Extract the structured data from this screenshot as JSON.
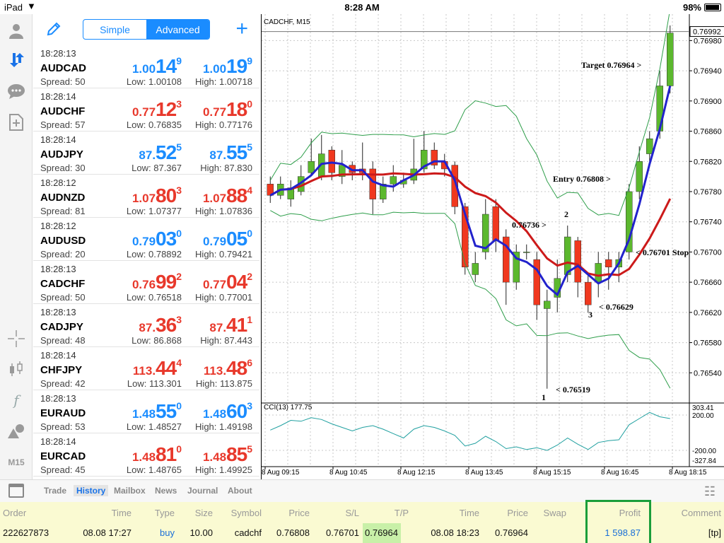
{
  "status": {
    "device": "iPad",
    "time": "8:28 AM",
    "battery": "98%"
  },
  "toolbar": {
    "simple_label": "Simple",
    "advanced_label": "Advanced"
  },
  "sidebar": {
    "timeframe": "M15"
  },
  "quotes": [
    {
      "time": "18:28:13",
      "symbol": "AUDCAD",
      "spread": "Spread: 50",
      "low": "Low: 1.00108",
      "high": "High: 1.00718",
      "bid": [
        "1.00",
        "14",
        "9"
      ],
      "ask": [
        "1.00",
        "19",
        "9"
      ],
      "color": "blue"
    },
    {
      "time": "18:28:14",
      "symbol": "AUDCHF",
      "spread": "Spread: 57",
      "low": "Low: 0.76835",
      "high": "High: 0.77176",
      "bid": [
        "0.77",
        "12",
        "3"
      ],
      "ask": [
        "0.77",
        "18",
        "0"
      ],
      "color": "red"
    },
    {
      "time": "18:28:14",
      "symbol": "AUDJPY",
      "spread": "Spread: 30",
      "low": "Low: 87.367",
      "high": "High: 87.830",
      "bid": [
        "87.",
        "52",
        "5"
      ],
      "ask": [
        "87.",
        "55",
        "5"
      ],
      "color": "blue"
    },
    {
      "time": "18:28:12",
      "symbol": "AUDNZD",
      "spread": "Spread: 81",
      "low": "Low: 1.07377",
      "high": "High: 1.07836",
      "bid": [
        "1.07",
        "80",
        "3"
      ],
      "ask": [
        "1.07",
        "88",
        "4"
      ],
      "color": "red"
    },
    {
      "time": "18:28:12",
      "symbol": "AUDUSD",
      "spread": "Spread: 20",
      "low": "Low: 0.78892",
      "high": "High: 0.79421",
      "bid": [
        "0.79",
        "03",
        "0"
      ],
      "ask": [
        "0.79",
        "05",
        "0"
      ],
      "color": "blue"
    },
    {
      "time": "18:28:13",
      "symbol": "CADCHF",
      "spread": "Spread: 50",
      "low": "Low: 0.76518",
      "high": "High: 0.77001",
      "bid": [
        "0.76",
        "99",
        "2"
      ],
      "ask": [
        "0.77",
        "04",
        "2"
      ],
      "color": "red"
    },
    {
      "time": "18:28:13",
      "symbol": "CADJPY",
      "spread": "Spread: 48",
      "low": "Low: 86.868",
      "high": "High: 87.443",
      "bid": [
        "87.",
        "36",
        "3"
      ],
      "ask": [
        "87.",
        "41",
        "1"
      ],
      "color": "red"
    },
    {
      "time": "18:28:14",
      "symbol": "CHFJPY",
      "spread": "Spread: 42",
      "low": "Low: 113.301",
      "high": "High: 113.875",
      "bid": [
        "113.",
        "44",
        "4"
      ],
      "ask": [
        "113.",
        "48",
        "6"
      ],
      "color": "red"
    },
    {
      "time": "18:28:13",
      "symbol": "EURAUD",
      "spread": "Spread: 53",
      "low": "Low: 1.48527",
      "high": "High: 1.49198",
      "bid": [
        "1.48",
        "55",
        "0"
      ],
      "ask": [
        "1.48",
        "60",
        "3"
      ],
      "color": "blue"
    },
    {
      "time": "18:28:14",
      "symbol": "EURCAD",
      "spread": "Spread: 45",
      "low": "Low: 1.48765",
      "high": "High: 1.49925",
      "bid": [
        "1.48",
        "81",
        "0"
      ],
      "ask": [
        "1.48",
        "85",
        "5"
      ],
      "color": "red"
    }
  ],
  "chart": {
    "title": "CADCHF, M15",
    "current_price": "0.76992",
    "price_labels": [
      "0.76980",
      "0.76940",
      "0.76900",
      "0.76860",
      "0.76820",
      "0.76780",
      "0.76740",
      "0.76700",
      "0.76660",
      "0.76620",
      "0.76580",
      "0.76540"
    ],
    "time_labels": [
      "8 Aug 09:15",
      "8 Aug 10:45",
      "8 Aug 12:15",
      "8 Aug 13:45",
      "8 Aug 15:15",
      "8 Aug 16:45",
      "8 Aug 18:15"
    ],
    "annotations": {
      "target": "Target 0.76964 >",
      "entry": "Entry 0.76808 >",
      "level": "0.76736 >",
      "stop": "< 0.76701 Stop",
      "low3": "< 0.76629",
      "low1": "< 0.76519",
      "n1": "1",
      "n2": "2",
      "n3": "3"
    },
    "cci": {
      "label": "CCI(13) 177.75",
      "levels": [
        "303.41",
        "200.00",
        "-200.00",
        "-327.84"
      ]
    }
  },
  "chart_data": {
    "type": "candlestick",
    "symbol": "CADCHF",
    "timeframe": "M15",
    "ylim": [
      0.765,
      0.77015
    ],
    "candles": [
      [
        0.7679,
        0.76775,
        0.768,
        0.76765
      ],
      [
        0.76775,
        0.7679,
        0.768,
        0.7677
      ],
      [
        0.7677,
        0.76785,
        0.76795,
        0.7676
      ],
      [
        0.7678,
        0.768,
        0.76815,
        0.76775
      ],
      [
        0.76805,
        0.7682,
        0.7685,
        0.768
      ],
      [
        0.768,
        0.7683,
        0.76855,
        0.76795
      ],
      [
        0.76835,
        0.76805,
        0.7684,
        0.76795
      ],
      [
        0.768,
        0.76815,
        0.76835,
        0.7679
      ],
      [
        0.76815,
        0.76805,
        0.7682,
        0.76795
      ],
      [
        0.7681,
        0.76805,
        0.76845,
        0.76795
      ],
      [
        0.7681,
        0.7677,
        0.7682,
        0.7675
      ],
      [
        0.7677,
        0.7679,
        0.768,
        0.76765
      ],
      [
        0.7679,
        0.768,
        0.76815,
        0.7678
      ],
      [
        0.7679,
        0.76795,
        0.76805,
        0.76785
      ],
      [
        0.76795,
        0.7681,
        0.7685,
        0.7679
      ],
      [
        0.7681,
        0.76835,
        0.7686,
        0.76805
      ],
      [
        0.76835,
        0.76815,
        0.76845,
        0.7681
      ],
      [
        0.7682,
        0.7681,
        0.7683,
        0.768
      ],
      [
        0.76815,
        0.7676,
        0.7682,
        0.7675
      ],
      [
        0.7676,
        0.7668,
        0.76765,
        0.7667
      ],
      [
        0.7667,
        0.76685,
        0.767,
        0.7666
      ],
      [
        0.767,
        0.7675,
        0.7677,
        0.7669
      ],
      [
        0.7676,
        0.76715,
        0.7677,
        0.767
      ],
      [
        0.7672,
        0.7666,
        0.7673,
        0.7663
      ],
      [
        0.7666,
        0.767,
        0.7671,
        0.7665
      ],
      [
        0.767,
        0.767,
        0.7671,
        0.7669
      ],
      [
        0.7669,
        0.7663,
        0.767,
        0.7661
      ],
      [
        0.76625,
        0.76635,
        0.7665,
        0.76519
      ],
      [
        0.7664,
        0.76665,
        0.7669,
        0.7662
      ],
      [
        0.7667,
        0.7672,
        0.76735,
        0.7666
      ],
      [
        0.76715,
        0.7666,
        0.7672,
        0.7664
      ],
      [
        0.7666,
        0.7663,
        0.7667,
        0.7662
      ],
      [
        0.7666,
        0.76685,
        0.767,
        0.7664
      ],
      [
        0.7669,
        0.7668,
        0.767,
        0.7665
      ],
      [
        0.7668,
        0.7669,
        0.767,
        0.7666
      ],
      [
        0.767,
        0.7678,
        0.7679,
        0.7669
      ],
      [
        0.7678,
        0.7682,
        0.7684,
        0.7677
      ],
      [
        0.7683,
        0.7685,
        0.7686,
        0.7682
      ],
      [
        0.7686,
        0.7692,
        0.7694,
        0.7685
      ],
      [
        0.7692,
        0.7699,
        0.77,
        0.7691
      ]
    ]
  },
  "tabs": [
    "Trade",
    "History",
    "Mailbox",
    "News",
    "Journal",
    "About"
  ],
  "table": {
    "headers": [
      "Order",
      "Time",
      "Type",
      "Size",
      "Symbol",
      "Price",
      "S/L",
      "T/P",
      "Time",
      "Price",
      "Swap",
      "Profit",
      "Comment"
    ],
    "row": [
      "222627873",
      "08.08 17:27",
      "buy",
      "10.00",
      "cadchf",
      "0.76808",
      "0.76701",
      "0.76964",
      "08.08 18:23",
      "0.76964",
      "",
      "1 598.87",
      "[tp]"
    ]
  }
}
